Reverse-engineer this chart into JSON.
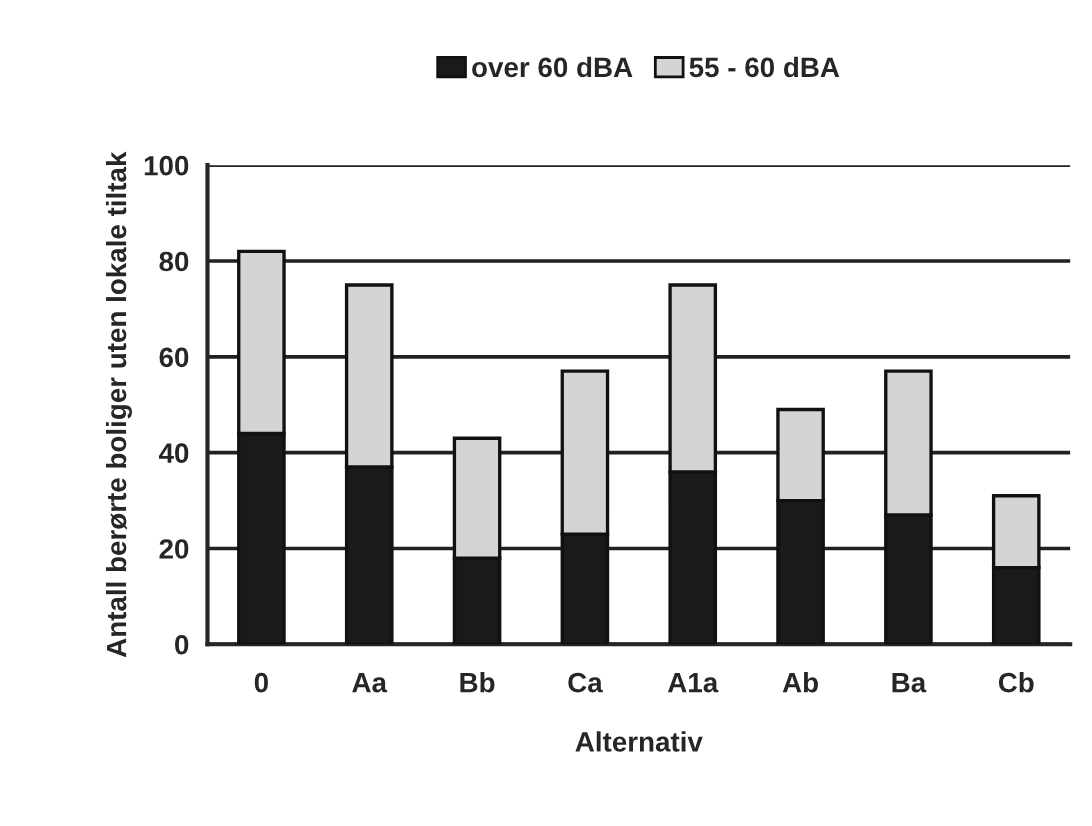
{
  "chart_data": {
    "type": "bar",
    "stacked": true,
    "categories": [
      "0",
      "Aa",
      "Bb",
      "Ca",
      "A1a",
      "Ab",
      "Ba",
      "Cb"
    ],
    "series": [
      {
        "name": "over 60 dBA",
        "color": "#1a1a1a",
        "values": [
          44,
          37,
          18,
          23,
          36,
          30,
          27,
          16
        ]
      },
      {
        "name": "55 - 60 dBA",
        "color": "#d4d4d4",
        "values": [
          38,
          38,
          25,
          34,
          39,
          19,
          30,
          15
        ]
      }
    ],
    "xlabel": "Alternativ",
    "ylabel": "Antall berørte boliger uten lokale tiltak",
    "ylim": [
      0,
      100
    ],
    "yticks": [
      0,
      20,
      40,
      60,
      80,
      100
    ],
    "grid": "y",
    "legend": "top"
  }
}
